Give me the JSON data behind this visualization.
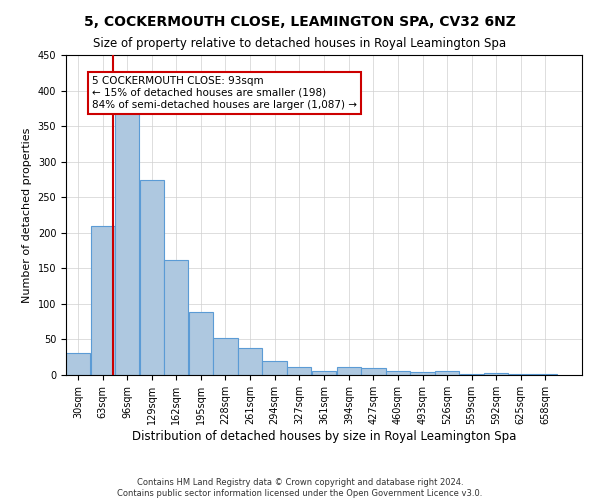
{
  "title": "5, COCKERMOUTH CLOSE, LEAMINGTON SPA, CV32 6NZ",
  "subtitle": "Size of property relative to detached houses in Royal Leamington Spa",
  "xlabel": "Distribution of detached houses by size in Royal Leamington Spa",
  "ylabel": "Number of detached properties",
  "footer_line1": "Contains HM Land Registry data © Crown copyright and database right 2024.",
  "footer_line2": "Contains public sector information licensed under the Open Government Licence v3.0.",
  "bar_edges": [
    30,
    63,
    96,
    129,
    162,
    195,
    228,
    261,
    294,
    327,
    361,
    394,
    427,
    460,
    493,
    526,
    559,
    592,
    625,
    658,
    691
  ],
  "bar_heights": [
    31,
    210,
    376,
    274,
    162,
    88,
    52,
    38,
    20,
    11,
    6,
    11,
    10,
    5,
    4,
    5,
    1,
    3,
    1,
    2
  ],
  "bar_color": "#aec8e0",
  "bar_edge_color": "#5b9bd5",
  "property_line_x": 93,
  "annotation_line1": "5 COCKERMOUTH CLOSE: 93sqm",
  "annotation_line2": "← 15% of detached houses are smaller (198)",
  "annotation_line3": "84% of semi-detached houses are larger (1,087) →",
  "annotation_box_facecolor": "#ffffff",
  "annotation_box_edgecolor": "#cc0000",
  "red_line_color": "#cc0000",
  "ylim": [
    0,
    450
  ],
  "xlim": [
    30,
    724
  ],
  "yticks": [
    0,
    50,
    100,
    150,
    200,
    250,
    300,
    350,
    400,
    450
  ],
  "background_color": "#ffffff",
  "grid_color": "#d0d0d0",
  "title_fontsize": 10,
  "subtitle_fontsize": 8.5,
  "ylabel_fontsize": 8,
  "xlabel_fontsize": 8.5,
  "tick_fontsize": 7,
  "annot_fontsize": 7.5,
  "footer_fontsize": 6
}
